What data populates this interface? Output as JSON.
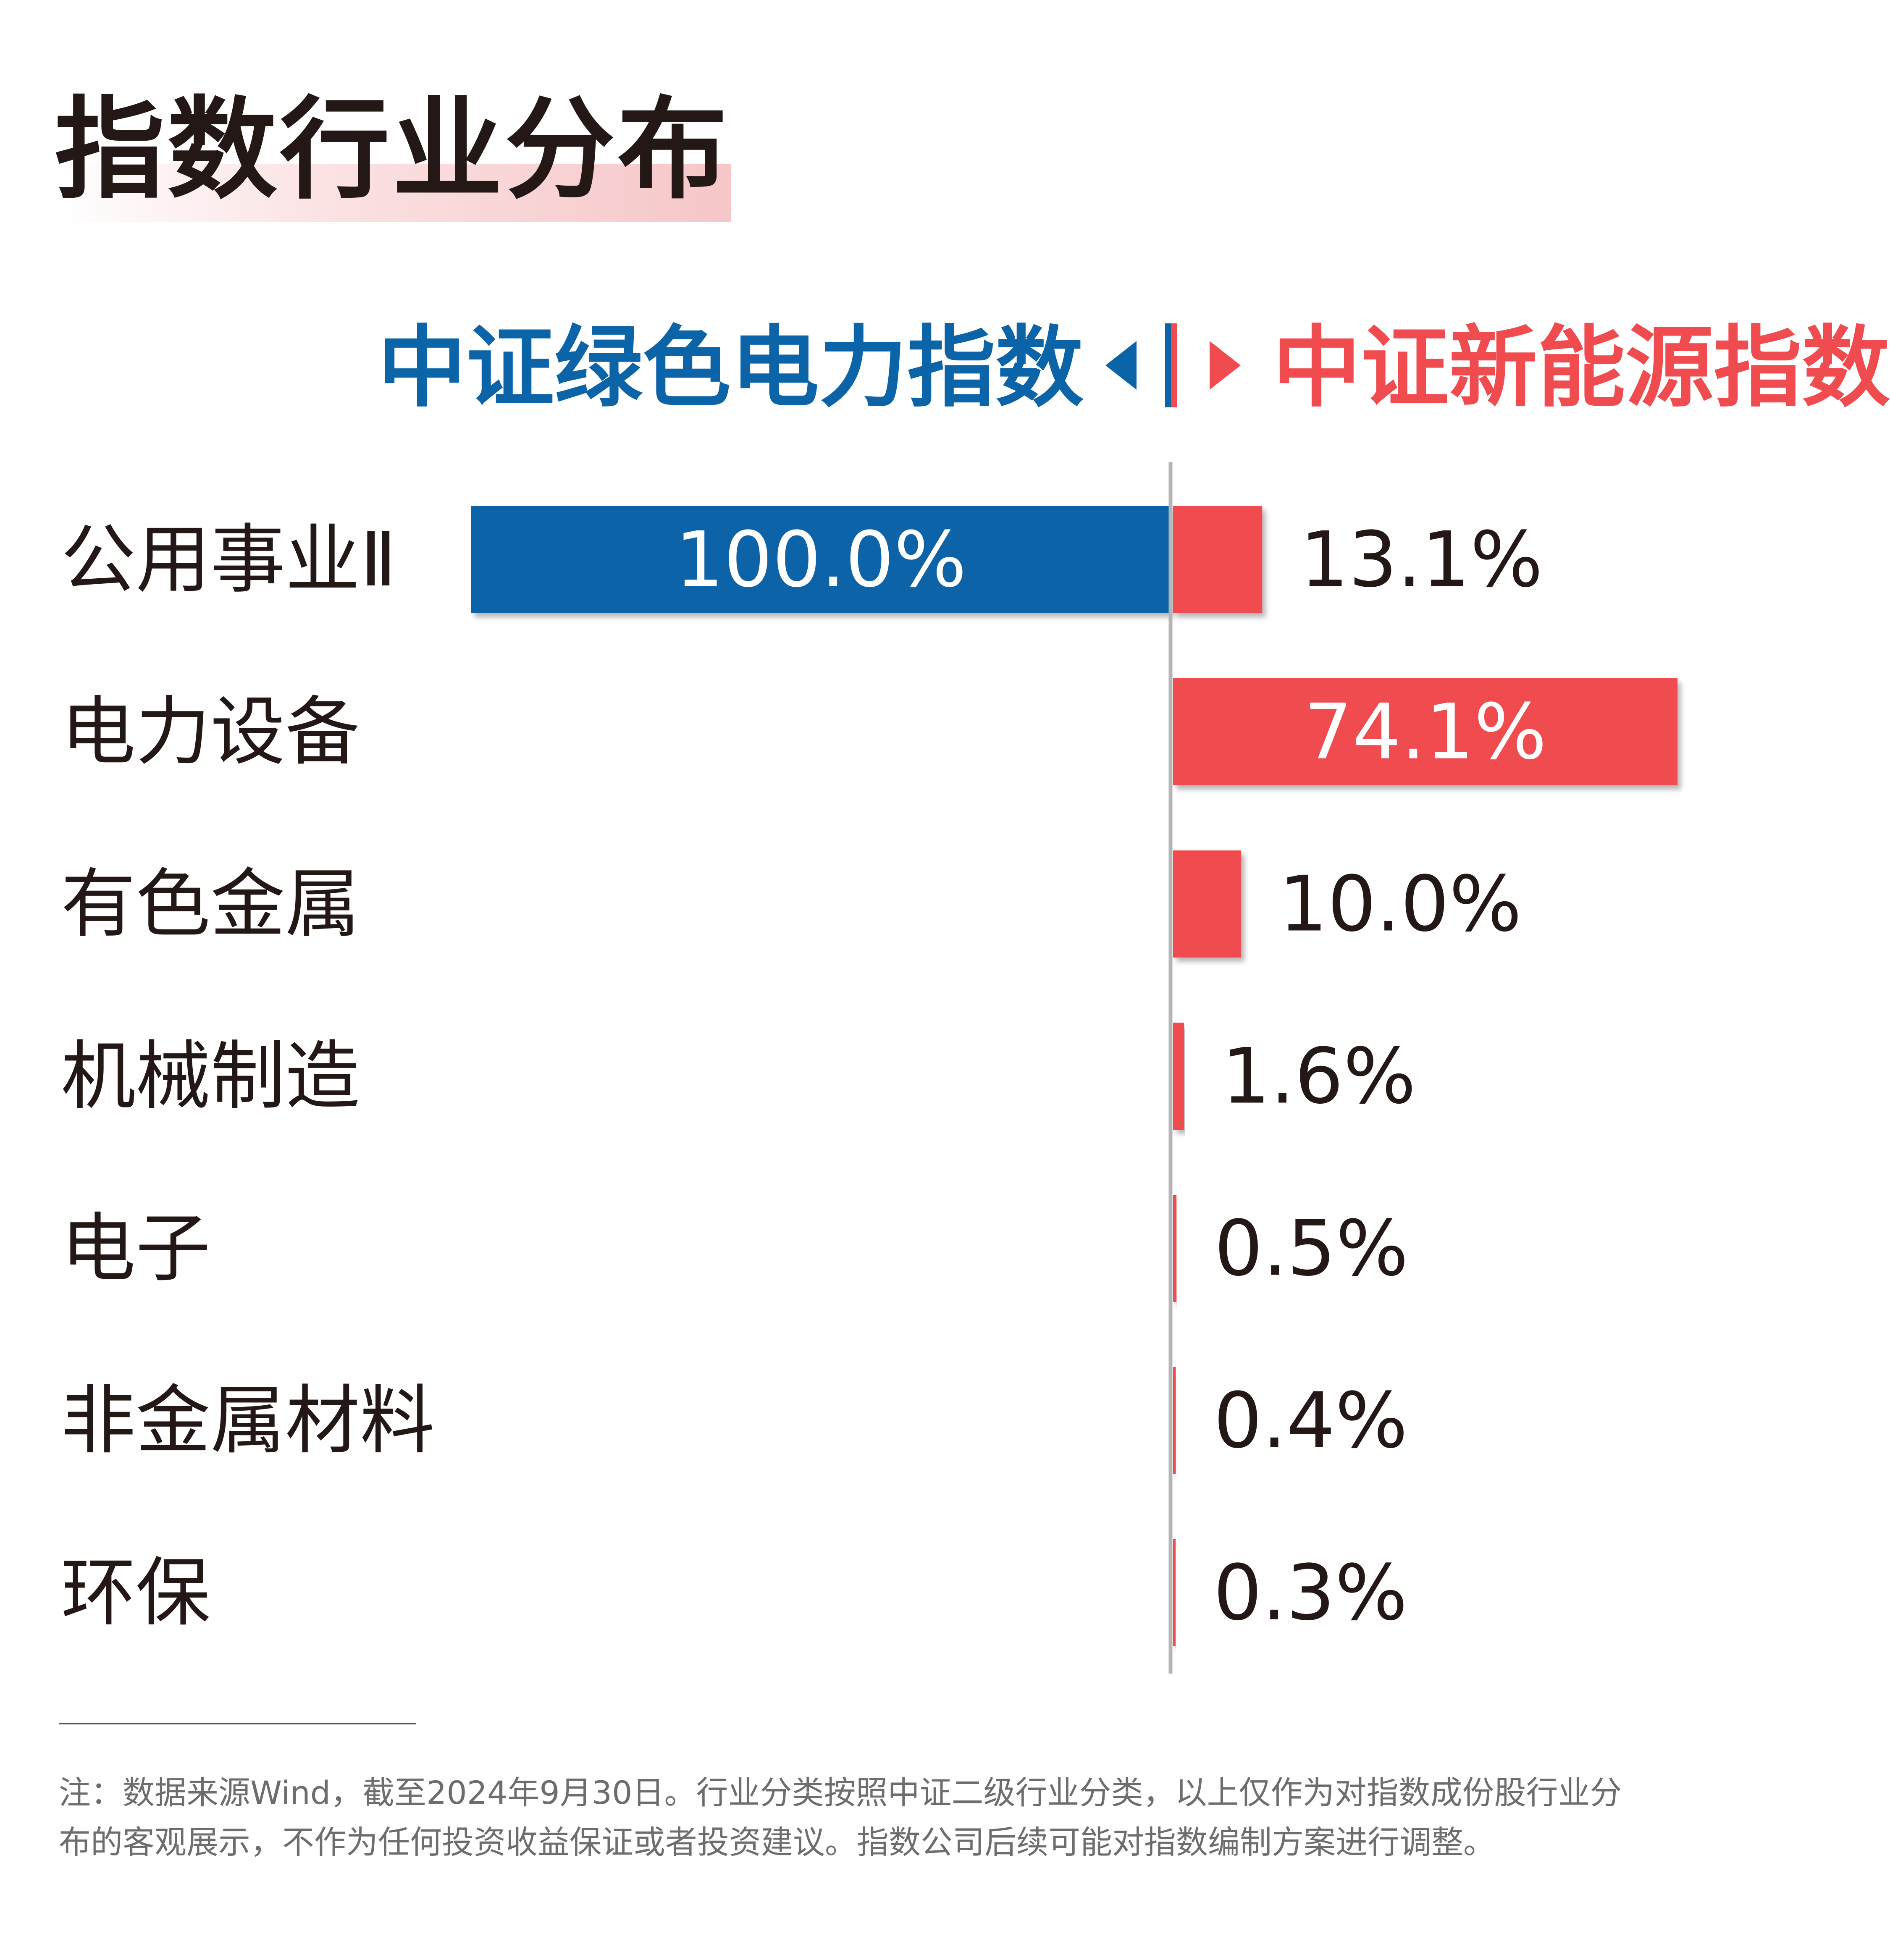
{
  "title": "指数行业分布",
  "legend": {
    "left_label": "中证绿色电力指数",
    "right_label": "中证新能源指数"
  },
  "colors": {
    "left_series": "#0b63a8",
    "right_series": "#f04b4f",
    "axis": "#b5b5b5",
    "text": "#231815",
    "footnote": "#6d6d6d"
  },
  "chart_data": {
    "type": "bar",
    "orientation": "horizontal-diverging",
    "categories": [
      "公用事业Ⅱ",
      "电力设备",
      "有色金属",
      "机械制造",
      "电子",
      "非金属材料",
      "环保"
    ],
    "series": [
      {
        "name": "中证绿色电力指数",
        "values": [
          100.0,
          null,
          null,
          null,
          null,
          null,
          null
        ],
        "labels": [
          "100.0%",
          "",
          "",
          "",
          "",
          "",
          ""
        ]
      },
      {
        "name": "中证新能源指数",
        "values": [
          13.1,
          74.1,
          10.0,
          1.6,
          0.5,
          0.4,
          0.3
        ],
        "labels": [
          "13.1%",
          "74.1%",
          "10.0%",
          "1.6%",
          "0.5%",
          "0.4%",
          "0.3%"
        ]
      }
    ],
    "unit": "%",
    "xlim": [
      0,
      100
    ],
    "grid": false,
    "legend_placement": "top-center"
  },
  "footnote": {
    "line1": "注：数据来源Wind，截至2024年9月30日。行业分类按照中证二级行业分类，以上仅作为对指数成份股行业分",
    "line2": "布的客观展示，不作为任何投资收益保证或者投资建议。指数公司后续可能对指数编制方案进行调整。"
  }
}
